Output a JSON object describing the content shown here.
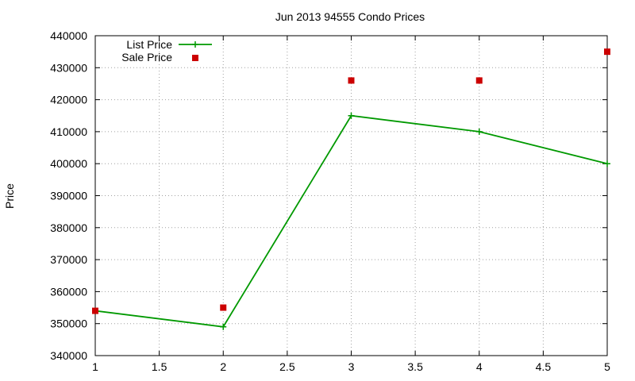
{
  "chart_data": {
    "type": "line",
    "title": "Jun 2013 94555 Condo Prices",
    "xlabel": "",
    "ylabel": "Price",
    "xlim": [
      1,
      5
    ],
    "ylim": [
      340000,
      440000
    ],
    "xticks": [
      1,
      1.5,
      2,
      2.5,
      3,
      3.5,
      4,
      4.5,
      5
    ],
    "yticks": [
      340000,
      350000,
      360000,
      370000,
      380000,
      390000,
      400000,
      410000,
      420000,
      430000,
      440000
    ],
    "grid": true,
    "legend_position": "top-left",
    "series": [
      {
        "name": "List Price",
        "style": "line-with-plus-markers",
        "color": "#009900",
        "x": [
          1,
          2,
          3,
          4,
          5
        ],
        "y": [
          354000,
          349000,
          415000,
          410000,
          400000
        ]
      },
      {
        "name": "Sale Price",
        "style": "square-points",
        "color": "#cc0000",
        "x": [
          1,
          2,
          3,
          4,
          5
        ],
        "y": [
          354000,
          355000,
          426000,
          426000,
          435000
        ]
      }
    ]
  }
}
